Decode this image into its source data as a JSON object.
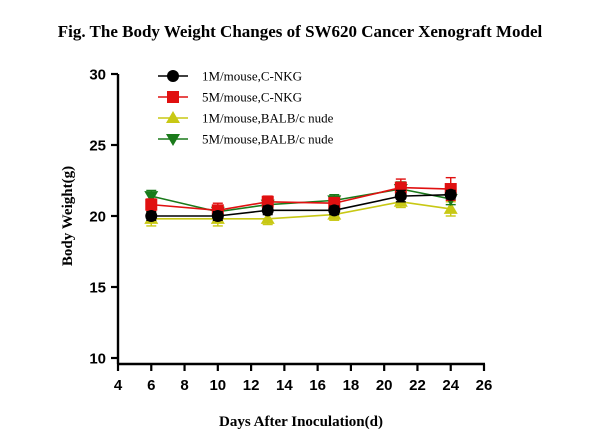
{
  "chart_data": {
    "type": "line",
    "title": "Fig. The Body Weight Changes of SW620 Cancer Xenograft Model",
    "xlabel": "Days After Inoculation(d)",
    "ylabel": "Body Weight(g)",
    "xlim": [
      4,
      26
    ],
    "ylim": [
      10,
      30
    ],
    "x_ticks": [
      4,
      6,
      8,
      10,
      12,
      14,
      16,
      18,
      20,
      22,
      24,
      26
    ],
    "y_ticks": [
      10,
      15,
      20,
      25,
      30
    ],
    "legend_position": "top",
    "series": [
      {
        "name": "1M/mouse,C-NKG",
        "color": "#000000",
        "marker": "circle",
        "x": [
          6,
          10,
          13,
          17,
          21,
          24
        ],
        "y": [
          20.0,
          20.0,
          20.4,
          20.4,
          21.4,
          21.5
        ],
        "err": [
          0.3,
          0.3,
          0.3,
          0.3,
          0.4,
          0.3
        ]
      },
      {
        "name": "5M/mouse,C-NKG",
        "color": "#e01010",
        "marker": "square",
        "x": [
          6,
          10,
          13,
          17,
          21,
          24
        ],
        "y": [
          20.8,
          20.4,
          21.0,
          20.9,
          22.0,
          21.9
        ],
        "err": [
          0.4,
          0.5,
          0.4,
          0.4,
          0.6,
          0.8
        ]
      },
      {
        "name": "1M/mouse,BALB/c nude",
        "color": "#c8c814",
        "marker": "triangle-up",
        "x": [
          6,
          10,
          13,
          17,
          21,
          24
        ],
        "y": [
          19.8,
          19.8,
          19.8,
          20.1,
          21.0,
          20.5
        ],
        "err": [
          0.5,
          0.5,
          0.4,
          0.4,
          0.4,
          0.5
        ]
      },
      {
        "name": "5M/mouse,BALB/c nude",
        "color": "#1a7a1a",
        "marker": "triangle-down",
        "x": [
          6,
          10,
          13,
          17,
          21,
          24
        ],
        "y": [
          21.4,
          20.3,
          20.8,
          21.1,
          21.9,
          21.2
        ],
        "err": [
          0.4,
          0.4,
          0.4,
          0.4,
          0.5,
          0.4
        ]
      }
    ]
  }
}
